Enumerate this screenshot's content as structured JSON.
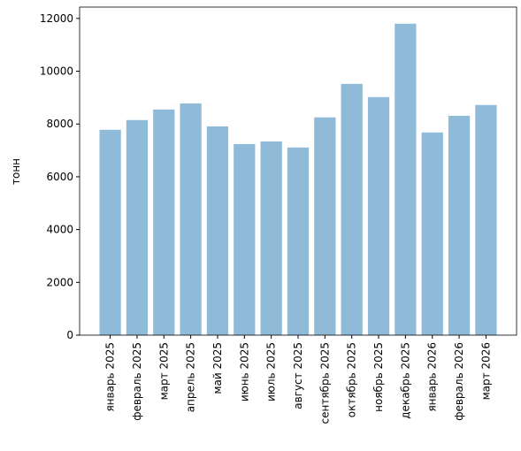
{
  "chart_data": {
    "type": "bar",
    "y_label": "тонн",
    "categories": [
      "январь 2025",
      "февраль 2025",
      "март 2025",
      "апрель 2025",
      "май 2025",
      "июнь 2025",
      "июль 2025",
      "август 2025",
      "сентябрь 2025",
      "октябрь 2025",
      "ноябрь 2025",
      "декабрь 2025",
      "январь 2026",
      "февраль 2026",
      "март 2026"
    ],
    "values": [
      7780,
      8150,
      8550,
      8780,
      7910,
      7240,
      7340,
      7110,
      8250,
      9520,
      9020,
      11800,
      7680,
      8310,
      8720
    ],
    "color": "#8fbbd9",
    "ylim": [
      0,
      12430
    ],
    "yticks": [
      0,
      2000,
      4000,
      6000,
      8000,
      10000,
      12000
    ]
  }
}
